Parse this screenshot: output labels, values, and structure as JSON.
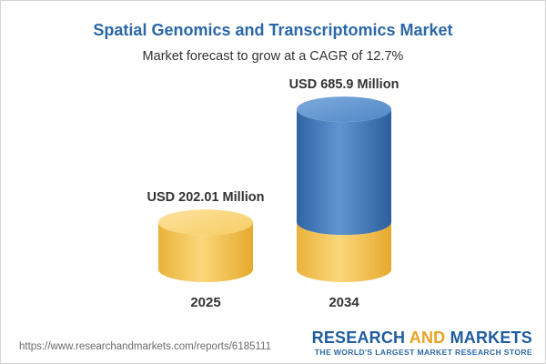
{
  "chart_data": {
    "type": "bar",
    "title": "Spatial Genomics and Transcriptomics Market",
    "subtitle": "Market forecast to grow at a CAGR of 12.7%",
    "categories": [
      "2025",
      "2034"
    ],
    "values": [
      202.01,
      685.9
    ],
    "value_labels": [
      "USD 202.01 Million",
      "USD 685.9 Million"
    ],
    "units": "USD Million",
    "xlabel": "",
    "ylabel": "",
    "grid": false,
    "legend": "none",
    "colors": {
      "bar_base": "#f5c451",
      "bar_growth": "#3d76b8",
      "title": "#2a68a6"
    }
  },
  "footer": {
    "source_url": "https://www.researchandmarkets.com/reports/6185111",
    "brand_name_part1": "RESEARCH ",
    "brand_name_part2": "AND",
    "brand_name_part3": " MARKETS",
    "brand_tagline": "THE WORLD'S LARGEST MARKET RESEARCH STORE"
  }
}
